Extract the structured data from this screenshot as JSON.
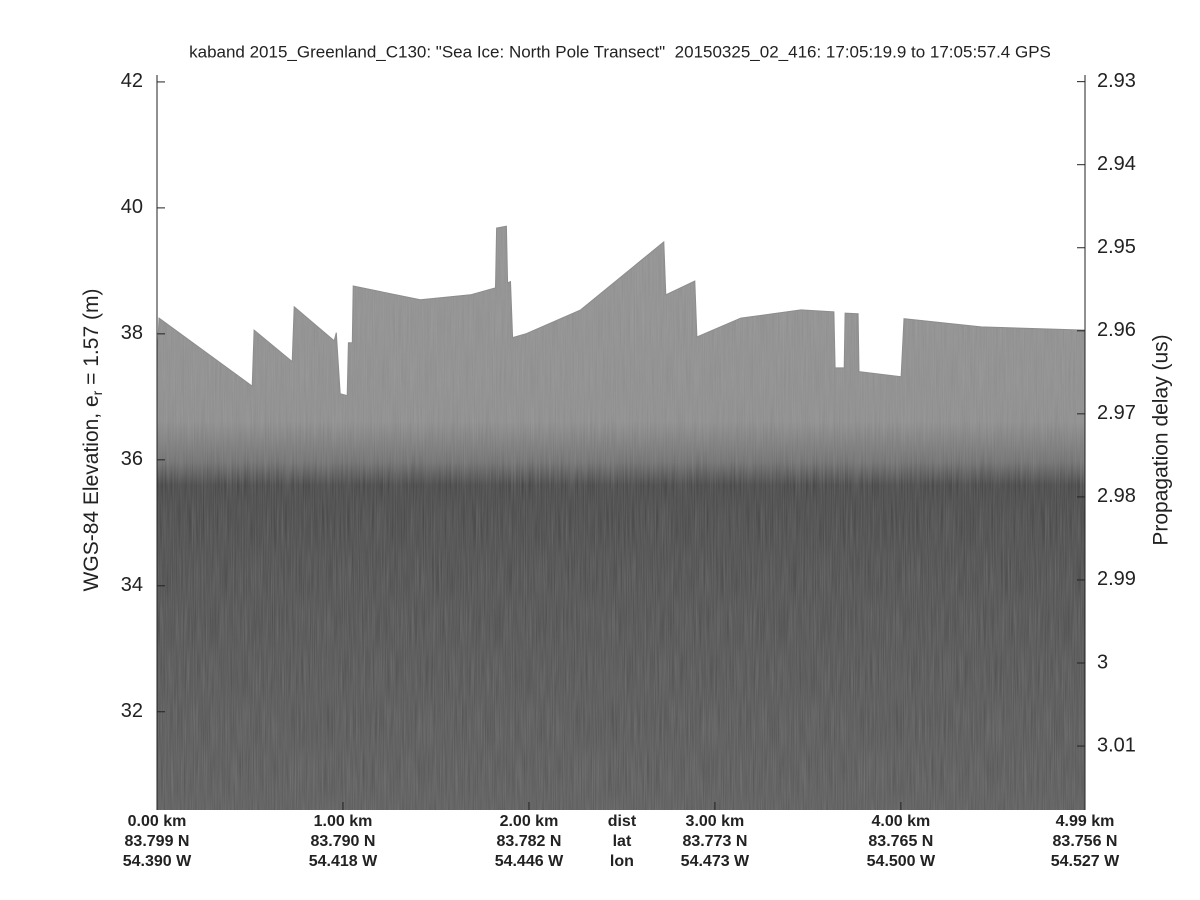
{
  "chart_data": {
    "type": "image",
    "title": "kaband 2015_Greenland_C130: \"Sea Ice: North Pole Transect\"  20150325_02_416: 17:05:19.9 to 17:05:57.4 GPS",
    "ylabel": {
      "text": "WGS-84 Elevation, e",
      "subscript": "r",
      "suffix": " = 1.57 (m)"
    },
    "y2label": "Propagation delay (us)",
    "xlim": [
      0,
      4.99
    ],
    "xticks": [
      {
        "value": 0,
        "label": "0.00 km"
      },
      {
        "value": 1,
        "label": "1.00 km"
      },
      {
        "value": 2,
        "label": "2.00 km"
      },
      {
        "value": 3,
        "label": "3.00 km"
      },
      {
        "value": 4,
        "label": "4.00 km"
      },
      {
        "value": 4.99,
        "label": "4.99 km"
      }
    ],
    "lat_labels": [
      "83.799 N",
      "83.790 N",
      "83.782 N",
      "83.773 N",
      "83.765 N",
      "83.756 N"
    ],
    "lon_labels": [
      "54.390 W",
      "54.418 W",
      "54.446 W",
      "54.473 W",
      "54.500 W",
      "54.527 W"
    ],
    "row_labels": [
      "dist",
      "lat",
      "lon"
    ],
    "ylim": [
      30.44,
      42.11
    ],
    "yticks": [
      32,
      34,
      36,
      38,
      40,
      42
    ],
    "y2lim": [
      3.0177,
      2.9292
    ],
    "y2ticks": [
      2.93,
      2.94,
      2.95,
      2.96,
      2.97,
      2.98,
      2.99,
      3,
      3.01
    ],
    "series": [
      {
        "color": "#8d8d8d",
        "x": [
          0,
          0.011,
          0.512,
          0.522,
          0.727,
          0.738,
          0.953,
          0.964,
          0.985,
          1.023,
          1.029,
          1.05,
          1.055,
          1.416,
          1.686,
          1.82,
          1.826,
          1.879,
          1.885,
          1.901,
          1.912,
          1.982,
          2.278,
          2.725,
          2.736,
          2.892,
          2.903,
          3.139,
          3.463,
          3.64,
          3.646,
          3.695,
          3.7,
          3.77,
          3.775,
          4.001,
          4.017,
          4.432,
          4.99
        ],
        "values": [
          37.51,
          38.25,
          37.17,
          38.06,
          37.56,
          38.43,
          37.89,
          38.02,
          37.05,
          37.02,
          37.86,
          37.86,
          38.76,
          38.54,
          38.62,
          38.73,
          39.68,
          39.71,
          38.81,
          38.83,
          37.94,
          38.0,
          38.38,
          39.46,
          38.62,
          38.84,
          37.95,
          38.25,
          38.38,
          38.35,
          37.46,
          37.46,
          38.33,
          38.32,
          37.4,
          37.32,
          38.24,
          38.11,
          38.06
        ]
      }
    ]
  }
}
